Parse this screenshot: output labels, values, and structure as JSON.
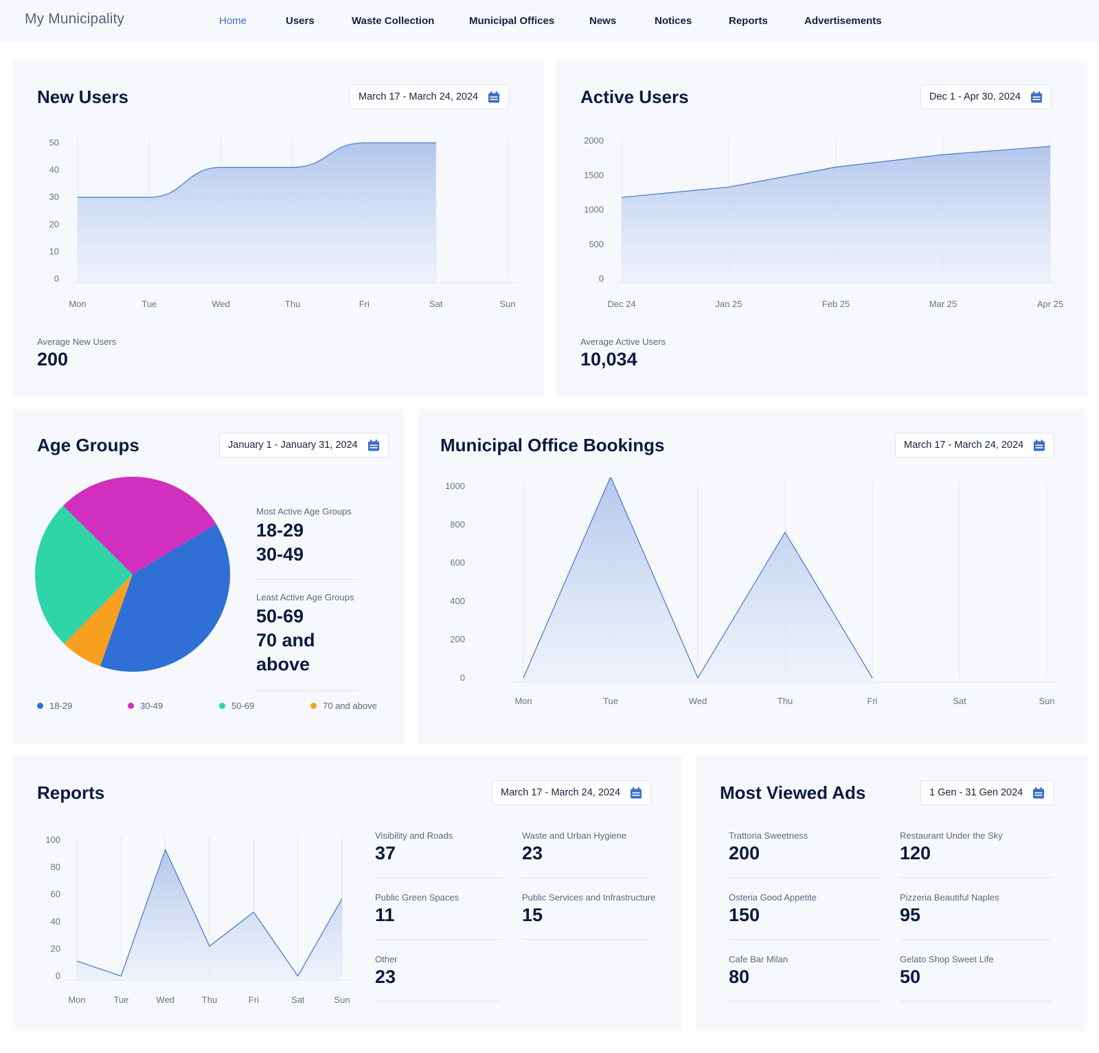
{
  "brand": "My Municipality",
  "nav": [
    "Home",
    "Users",
    "Waste Collection",
    "Municipal Offices",
    "News",
    "Notices",
    "Reports",
    "Advertisements"
  ],
  "colors": {
    "accent": "#3c6fc4",
    "area_fill": "#b8caee",
    "age_18_29": "#2f6fd6",
    "age_30_49": "#d12fbe",
    "age_50_69": "#2fd4a9",
    "age_70_plus": "#f7a020"
  },
  "new_users": {
    "title": "New Users",
    "date": "March 17 - March 24, 2024",
    "avg_label": "Average New Users",
    "avg_value": "200",
    "chart_data": {
      "type": "area",
      "categories": [
        "Mon",
        "Tue",
        "Wed",
        "Thu",
        "Fri",
        "Sat",
        "Sun"
      ],
      "series": [
        {
          "values": [
            30,
            30,
            41,
            41,
            50,
            50,
            null
          ]
        }
      ],
      "ylim": [
        0,
        50
      ],
      "yticks": [
        0,
        10,
        20,
        30,
        40,
        50
      ]
    }
  },
  "active_users": {
    "title": "Active Users",
    "date": "Dec 1 - Apr 30, 2024",
    "avg_label": "Average Active Users",
    "avg_value": "10,034",
    "chart_data": {
      "type": "area",
      "categories": [
        "Dec 24",
        "Jan 25",
        "Feb 25",
        "Mar 25",
        "Apr 25"
      ],
      "series": [
        {
          "values": [
            1180,
            1330,
            1620,
            1800,
            1920
          ]
        }
      ],
      "ylim": [
        0,
        2000
      ],
      "yticks": [
        0,
        500,
        1000,
        1500,
        2000
      ]
    }
  },
  "age_groups": {
    "title": "Age Groups",
    "date": "January 1 - January 31, 2024",
    "most_label": "Most Active Age Groups",
    "most_values": [
      "18-29",
      "30-49"
    ],
    "least_label": "Least Active Age Groups",
    "least_values": [
      "50-69",
      "70 and above"
    ],
    "chart_data": {
      "type": "pie",
      "labels": [
        "18-29",
        "30-49",
        "50-69",
        "70 and above"
      ],
      "values": [
        39,
        29,
        25,
        7
      ]
    }
  },
  "bookings": {
    "title": "Municipal Office Bookings",
    "date": "March 17 - March 24, 2024",
    "chart_data": {
      "type": "area",
      "categories": [
        "Mon",
        "Tue",
        "Wed",
        "Thu",
        "Fri",
        "Sat",
        "Sun"
      ],
      "series": [
        {
          "values": [
            0,
            1050,
            0,
            760,
            0,
            null,
            null
          ]
        }
      ],
      "ylim": [
        0,
        1000
      ],
      "yticks": [
        0,
        200,
        400,
        600,
        800,
        1000
      ]
    }
  },
  "reports": {
    "title": "Reports",
    "date": "March 17 - March 24, 2024",
    "items": [
      {
        "label": "Visibility and Roads",
        "value": "37"
      },
      {
        "label": "Waste and Urban Hygiene",
        "value": "23"
      },
      {
        "label": "Public Green Spaces",
        "value": "11"
      },
      {
        "label": "Public Services and Infrastructure",
        "value": "15"
      },
      {
        "label": "Other",
        "value": "23"
      }
    ],
    "chart_data": {
      "type": "area",
      "categories": [
        "Mon",
        "Tue",
        "Wed",
        "Thu",
        "Fri",
        "Sat",
        "Sun"
      ],
      "series": [
        {
          "values": [
            11,
            0,
            93,
            22,
            47,
            0,
            57
          ]
        }
      ],
      "ylim": [
        0,
        100
      ],
      "yticks": [
        0,
        20,
        40,
        60,
        80,
        100
      ]
    }
  },
  "ads": {
    "title": "Most Viewed Ads",
    "date": "1 Gen - 31 Gen 2024",
    "items": [
      {
        "label": "Trattoria Sweetness",
        "value": "200"
      },
      {
        "label": "Restaurant Under the Sky",
        "value": "120"
      },
      {
        "label": "Osteria Good Appetite",
        "value": "150"
      },
      {
        "label": "Pizzeria Beautiful Naples",
        "value": "95"
      },
      {
        "label": "Cafe Bar Milan",
        "value": "80"
      },
      {
        "label": "Gelato Shop Sweet Life",
        "value": "50"
      }
    ]
  }
}
